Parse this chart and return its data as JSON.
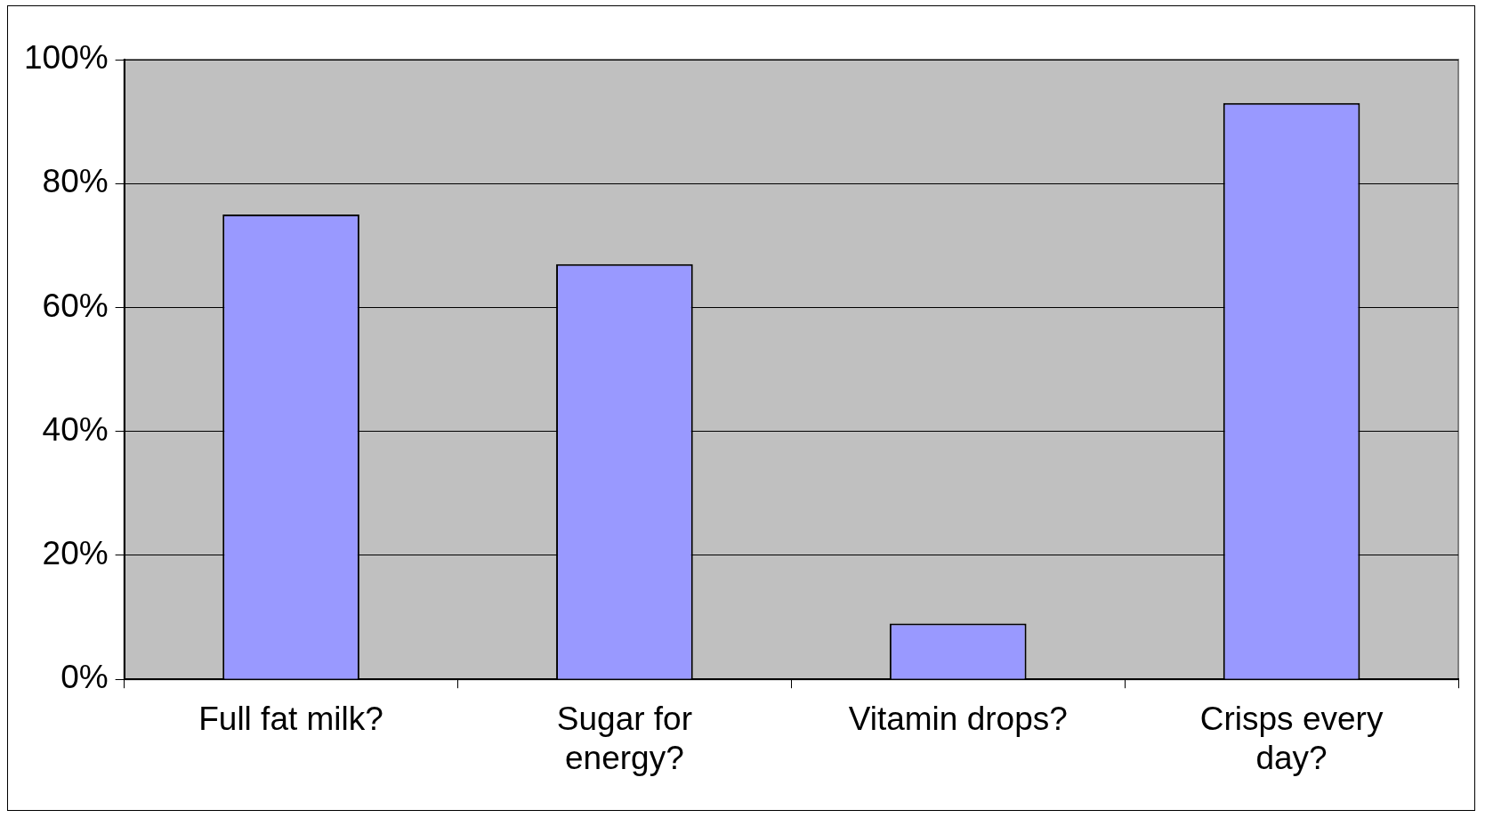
{
  "chart_data": {
    "type": "bar",
    "categories": [
      "Full fat milk?",
      "Sugar for energy?",
      "Vitamin drops?",
      "Crisps every day?"
    ],
    "values": [
      75,
      67,
      9,
      93
    ],
    "color": "#9999ff",
    "ylim": [
      0,
      100
    ],
    "yticks": [
      {
        "value": 0,
        "label": "0%"
      },
      {
        "value": 20,
        "label": "20%"
      },
      {
        "value": 40,
        "label": "40%"
      },
      {
        "value": 60,
        "label": "60%"
      },
      {
        "value": 80,
        "label": "80%"
      },
      {
        "value": 100,
        "label": "100%"
      }
    ],
    "grid": "y",
    "legend": false
  }
}
